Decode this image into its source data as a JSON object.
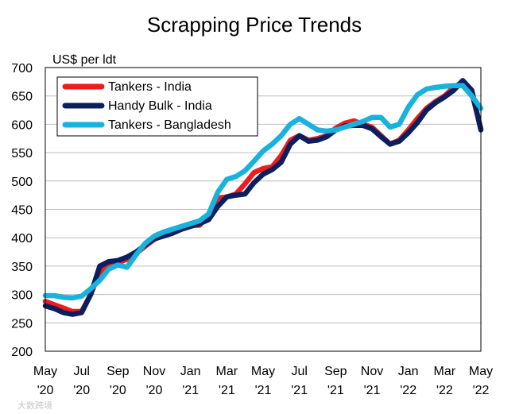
{
  "chart_data": {
    "type": "line",
    "title": "Scrapping Price Trends",
    "ylabel": "US$ per ldt",
    "xlabel": "",
    "ylim": [
      200,
      700
    ],
    "yticks": [
      200,
      250,
      300,
      350,
      400,
      450,
      500,
      550,
      600,
      650,
      700
    ],
    "xlim_months": [
      0,
      24
    ],
    "x_ticks": [
      {
        "m": 0,
        "top": "May",
        "bottom": "'20"
      },
      {
        "m": 2,
        "top": "Jul",
        "bottom": "'20"
      },
      {
        "m": 4,
        "top": "Sep",
        "bottom": "'20"
      },
      {
        "m": 6,
        "top": "Nov",
        "bottom": "'20"
      },
      {
        "m": 8,
        "top": "Jan",
        "bottom": "'21"
      },
      {
        "m": 10,
        "top": "Mar",
        "bottom": "'21"
      },
      {
        "m": 12,
        "top": "May",
        "bottom": "'21"
      },
      {
        "m": 14,
        "top": "Jul",
        "bottom": "'21"
      },
      {
        "m": 16,
        "top": "Sep",
        "bottom": "'21"
      },
      {
        "m": 18,
        "top": "Nov",
        "bottom": "'21"
      },
      {
        "m": 20,
        "top": "Jan",
        "bottom": "'22"
      },
      {
        "m": 22,
        "top": "Mar",
        "bottom": "'22"
      },
      {
        "m": 24,
        "top": "May",
        "bottom": "'22"
      }
    ],
    "grid": true,
    "legend_position": "top-left",
    "series": [
      {
        "name": "Tankers - India",
        "color": "#ee1c1c",
        "x": [
          0,
          0.5,
          1,
          1.5,
          2,
          2.5,
          3,
          3.5,
          4,
          4.5,
          5,
          5.5,
          6,
          6.5,
          7,
          7.5,
          8,
          8.5,
          9,
          9.5,
          10,
          10.5,
          11,
          11.5,
          12,
          12.5,
          13,
          13.5,
          14,
          14.5,
          15,
          15.5,
          16,
          16.5,
          17,
          17.5,
          18,
          18.5,
          19,
          19.5,
          20,
          20.5,
          21,
          21.5,
          22,
          22.5,
          23,
          23.5,
          24
        ],
        "y": [
          288,
          282,
          276,
          270,
          270,
          300,
          340,
          350,
          356,
          362,
          372,
          385,
          397,
          405,
          412,
          418,
          422,
          422,
          440,
          470,
          472,
          477,
          495,
          515,
          522,
          525,
          545,
          572,
          580,
          572,
          575,
          580,
          593,
          602,
          606,
          600,
          595,
          580,
          565,
          572,
          590,
          610,
          628,
          640,
          650,
          665,
          675,
          655,
          592
        ]
      },
      {
        "name": "Handy Bulk - India",
        "color": "#0b1f5e",
        "x": [
          0,
          0.5,
          1,
          1.5,
          2,
          2.5,
          3,
          3.5,
          4,
          4.5,
          5,
          5.5,
          6,
          6.5,
          7,
          7.5,
          8,
          8.5,
          9,
          9.5,
          10,
          10.5,
          11,
          11.5,
          12,
          12.5,
          13,
          13.5,
          14,
          14.5,
          15,
          15.5,
          16,
          16.5,
          17,
          17.5,
          18,
          18.5,
          19,
          19.5,
          20,
          20.5,
          21,
          21.5,
          22,
          22.5,
          23,
          23.5,
          24
        ],
        "y": [
          280,
          275,
          268,
          265,
          268,
          300,
          350,
          358,
          360,
          366,
          375,
          387,
          398,
          403,
          408,
          415,
          420,
          425,
          432,
          455,
          472,
          475,
          477,
          497,
          512,
          520,
          533,
          565,
          580,
          570,
          572,
          578,
          590,
          597,
          598,
          598,
          592,
          578,
          565,
          570,
          585,
          603,
          625,
          638,
          648,
          660,
          677,
          660,
          590
        ]
      },
      {
        "name": "Tankers - Bangladesh",
        "color": "#18b2dc",
        "x": [
          0,
          0.5,
          1,
          1.5,
          2,
          2.5,
          3,
          3.5,
          4,
          4.5,
          5,
          5.5,
          6,
          6.5,
          7,
          7.5,
          8,
          8.5,
          9,
          9.5,
          10,
          10.5,
          11,
          11.5,
          12,
          12.5,
          13,
          13.5,
          14,
          14.5,
          15,
          15.5,
          16,
          16.5,
          17,
          17.5,
          18,
          18.5,
          19,
          19.5,
          20,
          20.5,
          21,
          21.5,
          22,
          22.5,
          23,
          23.5,
          24
        ],
        "y": [
          298,
          298,
          295,
          294,
          297,
          310,
          325,
          345,
          352,
          348,
          370,
          390,
          403,
          410,
          415,
          420,
          425,
          430,
          442,
          480,
          503,
          508,
          518,
          535,
          553,
          565,
          580,
          600,
          610,
          600,
          590,
          588,
          590,
          595,
          600,
          605,
          612,
          612,
          595,
          600,
          630,
          652,
          662,
          665,
          667,
          668,
          668,
          650,
          628
        ]
      }
    ]
  },
  "watermark": "大数跨境"
}
